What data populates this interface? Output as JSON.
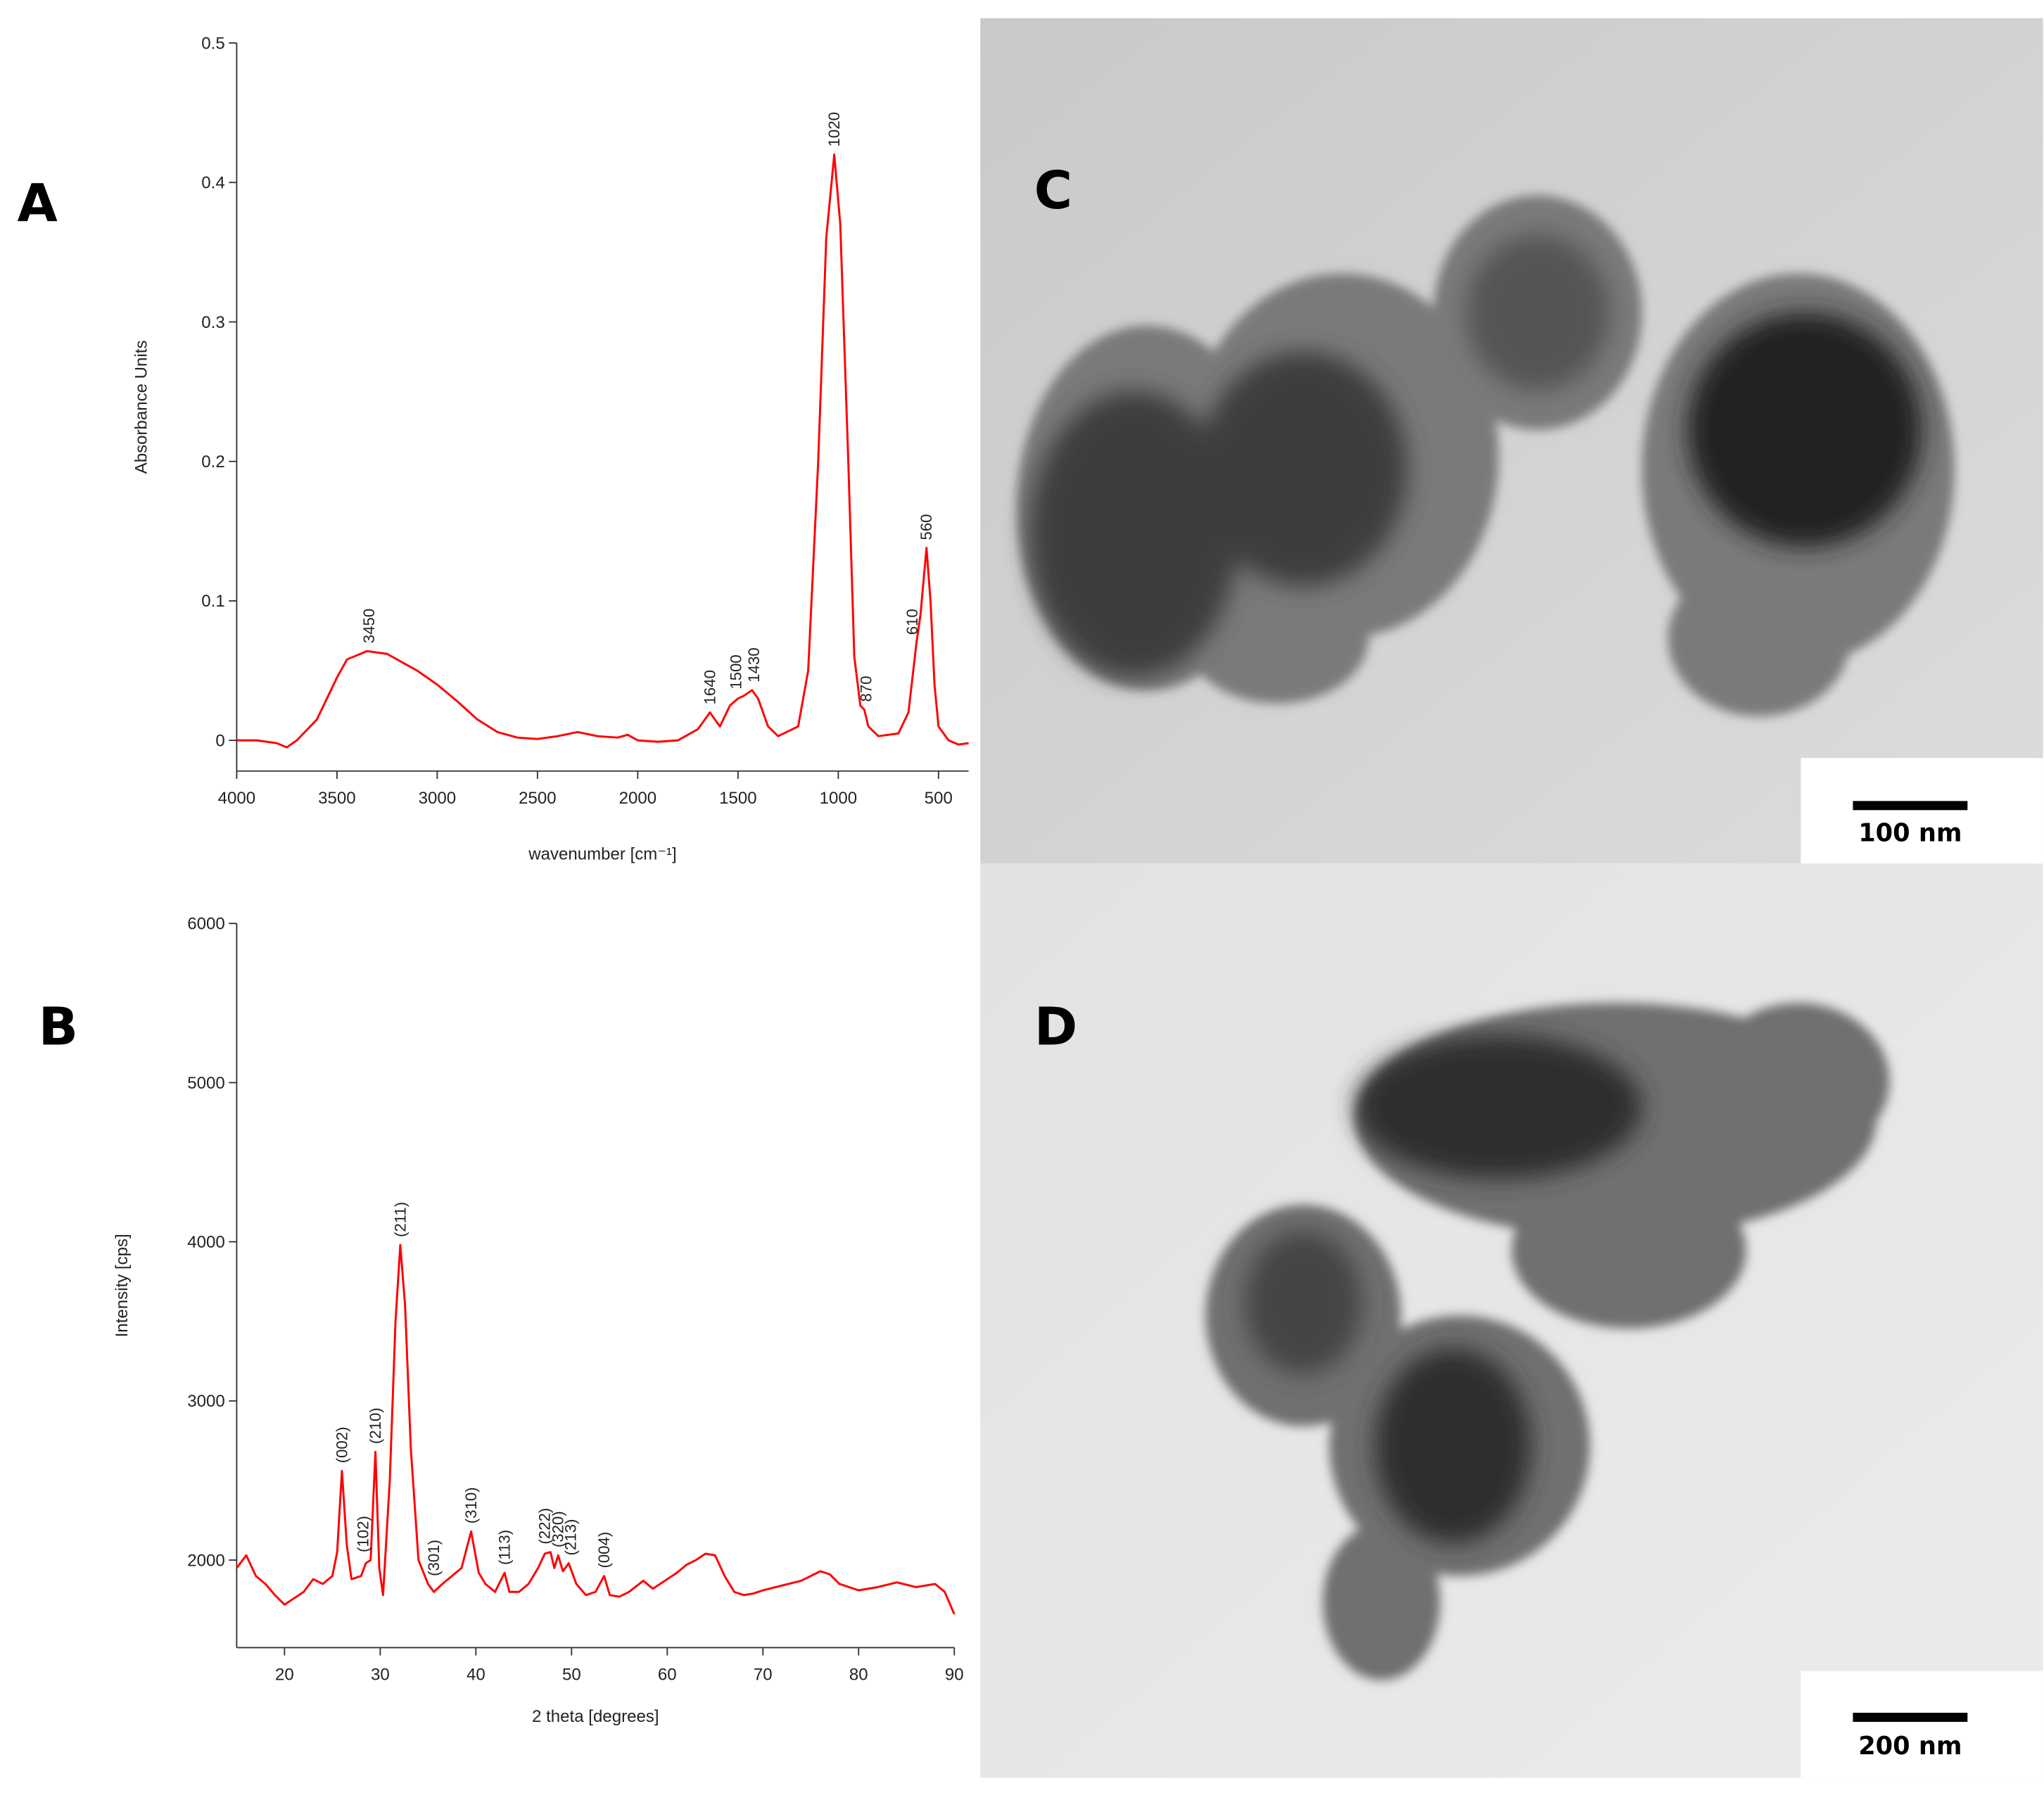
{
  "chart_data": [
    {
      "type": "line",
      "panel_label": "A",
      "x_label": "wavenumber [cm⁻¹]",
      "y_label": "Absorbance Units",
      "xlim": [
        4000,
        350
      ],
      "xticks": [
        4000,
        3500,
        3000,
        2500,
        2000,
        1500,
        1000,
        500
      ],
      "ylim": [
        -0.022,
        0.5
      ],
      "yticks": [
        0,
        0.1,
        0.2,
        0.3,
        0.4,
        0.5
      ],
      "series": [
        {
          "color": "#ff0000",
          "x": [
            4000,
            3900,
            3800,
            3750,
            3700,
            3600,
            3500,
            3450,
            3350,
            3250,
            3100,
            3000,
            2900,
            2800,
            2700,
            2600,
            2500,
            2400,
            2300,
            2200,
            2100,
            2050,
            2000,
            1900,
            1800,
            1700,
            1640,
            1590,
            1540,
            1500,
            1470,
            1430,
            1400,
            1350,
            1300,
            1200,
            1150,
            1100,
            1060,
            1020,
            990,
            950,
            920,
            890,
            870,
            850,
            800,
            700,
            650,
            610,
            590,
            560,
            540,
            520,
            500,
            450,
            400,
            350
          ],
          "values": [
            0,
            0,
            -0.002,
            -0.005,
            0,
            0.015,
            0.045,
            0.058,
            0.064,
            0.062,
            0.05,
            0.04,
            0.028,
            0.015,
            0.006,
            0.002,
            0.001,
            0.003,
            0.006,
            0.003,
            0.002,
            0.004,
            0,
            -0.001,
            0,
            0.008,
            0.02,
            0.01,
            0.025,
            0.03,
            0.032,
            0.036,
            0.03,
            0.01,
            0.003,
            0.01,
            0.05,
            0.2,
            0.36,
            0.42,
            0.37,
            0.2,
            0.06,
            0.025,
            0.022,
            0.01,
            0.003,
            0.005,
            0.02,
            0.07,
            0.09,
            0.138,
            0.1,
            0.04,
            0.01,
            0,
            -0.003,
            -0.002
          ]
        }
      ],
      "annotations": [
        {
          "label": "3450",
          "x": 3340,
          "y": 0.064
        },
        {
          "label": "1640",
          "x": 1640,
          "y": 0.02
        },
        {
          "label": "1500",
          "x": 1510,
          "y": 0.031
        },
        {
          "label": "1430",
          "x": 1420,
          "y": 0.036
        },
        {
          "label": "1020",
          "x": 1020,
          "y": 0.42
        },
        {
          "label": "870",
          "x": 860,
          "y": 0.022
        },
        {
          "label": "610",
          "x": 630,
          "y": 0.07
        },
        {
          "label": "560",
          "x": 560,
          "y": 0.138
        }
      ]
    },
    {
      "type": "line",
      "panel_label": "B",
      "x_label": "2 theta [degrees]",
      "y_label": "Intensity [cps]",
      "xlim": [
        15,
        90
      ],
      "xticks": [
        20,
        30,
        40,
        50,
        60,
        70,
        80,
        90
      ],
      "ylim": [
        1450,
        6000
      ],
      "yticks": [
        2000,
        3000,
        4000,
        5000,
        6000
      ],
      "series": [
        {
          "color": "#ff0000",
          "x": [
            15,
            16,
            17,
            18,
            19,
            20,
            21,
            22,
            23,
            24,
            25,
            25.5,
            26,
            26.5,
            27,
            28,
            28.5,
            29,
            29.5,
            29.9,
            30.3,
            31,
            31.6,
            32.1,
            32.6,
            33.2,
            34,
            35,
            35.6,
            36.5,
            37.5,
            38.5,
            39.5,
            40.3,
            41,
            42,
            43,
            43.5,
            44.5,
            45.5,
            46.5,
            47.2,
            47.8,
            48.2,
            48.6,
            49.1,
            49.7,
            50.5,
            51.5,
            52.5,
            53.4,
            54,
            55,
            56,
            57.5,
            58.5,
            60,
            61,
            62,
            63,
            64,
            65,
            66,
            67,
            68,
            69,
            70,
            72,
            74,
            76,
            77,
            78,
            80,
            82,
            84,
            86,
            88,
            89,
            90
          ],
          "values": [
            1950,
            2030,
            1900,
            1850,
            1780,
            1720,
            1760,
            1800,
            1880,
            1850,
            1900,
            2050,
            2560,
            2100,
            1880,
            1900,
            1980,
            2000,
            2680,
            1950,
            1780,
            2500,
            3500,
            3980,
            3600,
            2700,
            2000,
            1850,
            1800,
            1850,
            1900,
            1950,
            2180,
            1920,
            1850,
            1800,
            1920,
            1800,
            1800,
            1850,
            1950,
            2040,
            2050,
            1950,
            2030,
            1930,
            1980,
            1850,
            1780,
            1800,
            1900,
            1780,
            1770,
            1800,
            1870,
            1820,
            1880,
            1920,
            1970,
            2000,
            2040,
            2030,
            1900,
            1800,
            1780,
            1790,
            1810,
            1840,
            1870,
            1930,
            1910,
            1850,
            1810,
            1830,
            1860,
            1830,
            1850,
            1800,
            1660
          ]
        }
      ],
      "annotations": [
        {
          "label": "(002)",
          "x": 26,
          "y": 2560
        },
        {
          "label": "(102)",
          "x": 28.2,
          "y": 2000
        },
        {
          "label": "(210)",
          "x": 29.5,
          "y": 2680
        },
        {
          "label": "(211)",
          "x": 32.1,
          "y": 3980
        },
        {
          "label": "(301)",
          "x": 35.6,
          "y": 1850
        },
        {
          "label": "(310)",
          "x": 39.5,
          "y": 2180
        },
        {
          "label": "(113)",
          "x": 43,
          "y": 1920
        },
        {
          "label": "(222)",
          "x": 47.2,
          "y": 2050
        },
        {
          "label": "(320)",
          "x": 48.6,
          "y": 2030
        },
        {
          "label": "(213)",
          "x": 49.9,
          "y": 1980
        },
        {
          "label": "(004)",
          "x": 53.4,
          "y": 1900
        }
      ]
    }
  ],
  "images": [
    {
      "panel_label": "C",
      "scale_bar": "100 nm"
    },
    {
      "panel_label": "D",
      "scale_bar": "200 nm"
    }
  ]
}
